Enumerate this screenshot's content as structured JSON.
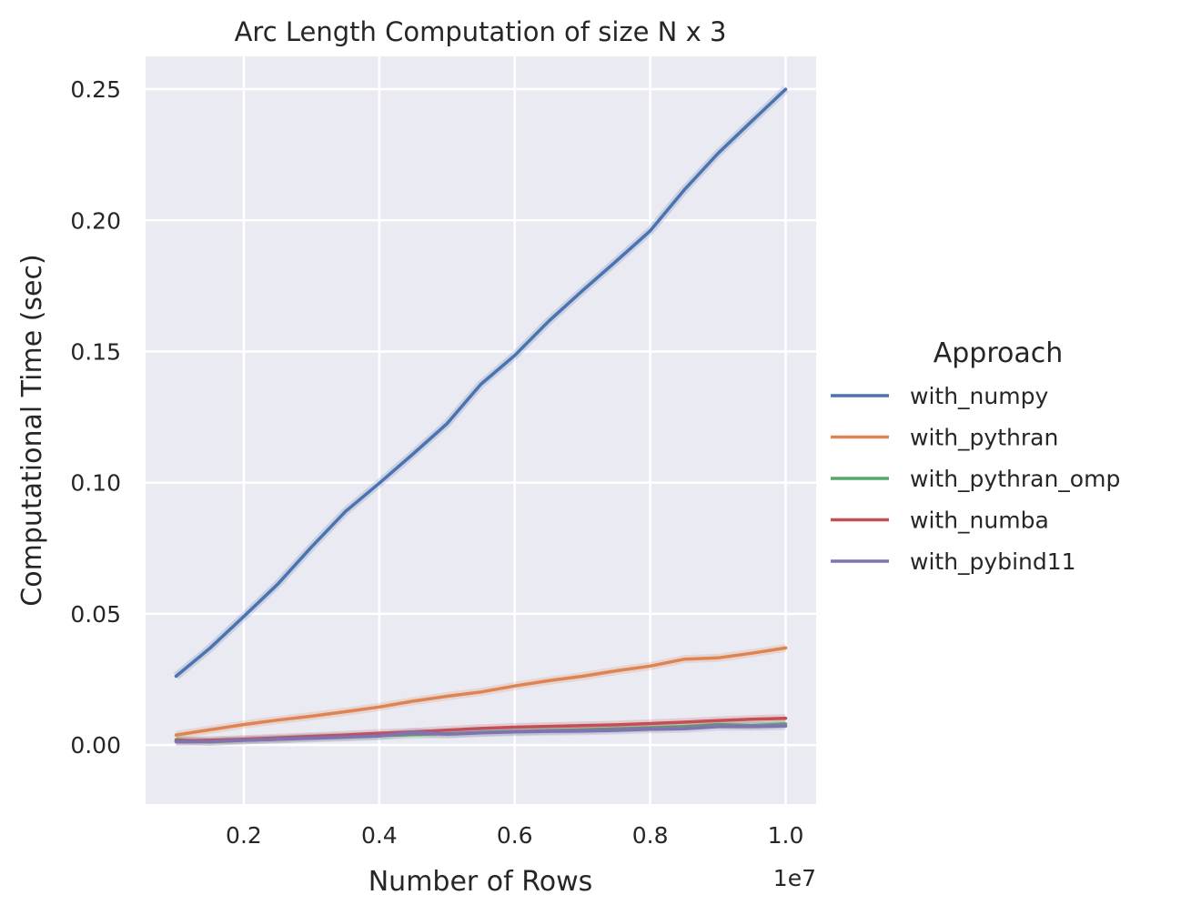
{
  "chart_data": {
    "type": "line",
    "title": "Arc Length Computation of size N x 3",
    "xlabel": "Number of Rows",
    "ylabel": "Computational Time (sec)",
    "x_offset_text": "1e7",
    "xlim": [
      0.055,
      1.045
    ],
    "ylim": [
      -0.0225,
      0.2625
    ],
    "x_ticks": [
      0.2,
      0.4,
      0.6,
      0.8,
      1.0
    ],
    "x_tick_labels": [
      "0.2",
      "0.4",
      "0.6",
      "0.8",
      "1.0"
    ],
    "y_ticks": [
      0.0,
      0.05,
      0.1,
      0.15,
      0.2,
      0.25
    ],
    "y_tick_labels": [
      "0.00",
      "0.05",
      "0.10",
      "0.15",
      "0.20",
      "0.25"
    ],
    "grid": true,
    "legend": {
      "title": "Approach",
      "placement": "right"
    },
    "x": [
      0.1,
      0.15,
      0.2,
      0.25,
      0.3,
      0.35,
      0.4,
      0.45,
      0.5,
      0.55,
      0.6,
      0.65,
      0.7,
      0.75,
      0.8,
      0.85,
      0.9,
      0.95,
      1.0
    ],
    "series": [
      {
        "name": "with_numpy",
        "color": "#4c72b0",
        "values": [
          0.0262,
          0.0369,
          0.049,
          0.0613,
          0.0755,
          0.089,
          0.0998,
          0.111,
          0.1225,
          0.1375,
          0.1485,
          0.1615,
          0.1732,
          0.1845,
          0.196,
          0.2115,
          0.2255,
          0.2378,
          0.25
        ]
      },
      {
        "name": "with_pythran",
        "color": "#dd8452",
        "values": [
          0.0038,
          0.0058,
          0.0078,
          0.0095,
          0.011,
          0.0127,
          0.0145,
          0.0167,
          0.0186,
          0.0202,
          0.0225,
          0.0245,
          0.0262,
          0.0283,
          0.0301,
          0.0327,
          0.0332,
          0.035,
          0.037
        ]
      },
      {
        "name": "with_pythran_omp",
        "color": "#55a868",
        "values": [
          0.002,
          0.0012,
          0.0018,
          0.0022,
          0.0028,
          0.0032,
          0.0036,
          0.004,
          0.0043,
          0.0048,
          0.0052,
          0.0055,
          0.0058,
          0.0062,
          0.0066,
          0.007,
          0.0078,
          0.0074,
          0.008
        ]
      },
      {
        "name": "with_numba",
        "color": "#c44e52",
        "values": [
          0.0015,
          0.0018,
          0.0022,
          0.0027,
          0.0033,
          0.0038,
          0.0045,
          0.005,
          0.0057,
          0.0063,
          0.0068,
          0.0071,
          0.0074,
          0.0077,
          0.0082,
          0.0087,
          0.0093,
          0.0098,
          0.0102
        ]
      },
      {
        "name": "with_pybind11",
        "color": "#8172b3",
        "values": [
          0.0012,
          0.0013,
          0.0018,
          0.0022,
          0.0026,
          0.003,
          0.0034,
          0.0048,
          0.0041,
          0.0046,
          0.005,
          0.0052,
          0.0053,
          0.0056,
          0.006,
          0.0062,
          0.007,
          0.007,
          0.0072
        ]
      }
    ]
  }
}
